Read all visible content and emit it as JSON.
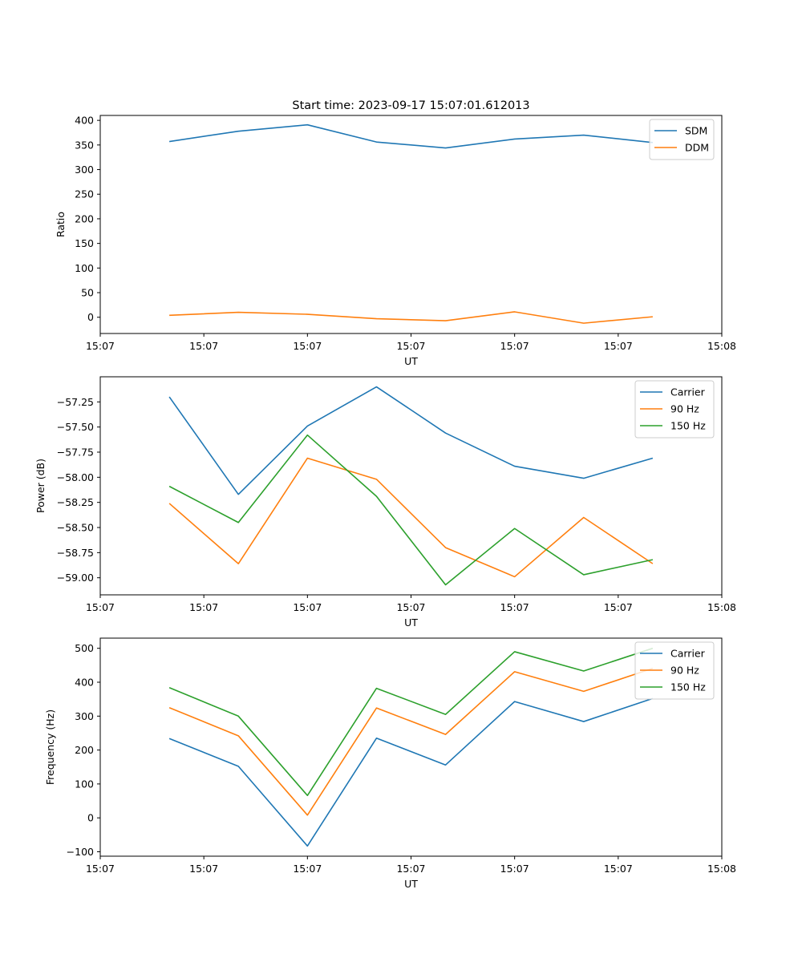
{
  "figure_title": "Start time: 2023-09-17 15:07:01.612013",
  "chart_data": [
    {
      "type": "line",
      "title": "Start time: 2023-09-17 15:07:01.612013",
      "xlabel": "UT",
      "ylabel": "Ratio",
      "x_index": [
        1,
        2,
        3,
        4,
        5,
        6,
        7,
        8
      ],
      "xlim": [
        0,
        9
      ],
      "x_ticks": [
        0,
        1.5,
        3,
        4.5,
        6,
        7.5,
        9
      ],
      "x_tick_labels": [
        "15:07",
        "15:07",
        "15:07",
        "15:07",
        "15:07",
        "15:07",
        "15:08"
      ],
      "ylim": [
        -33,
        410
      ],
      "y_ticks": [
        0,
        50,
        100,
        150,
        200,
        250,
        300,
        350,
        400
      ],
      "y_tick_labels": [
        "0",
        "50",
        "100",
        "150",
        "200",
        "250",
        "300",
        "350",
        "400"
      ],
      "legend": "top-right",
      "series": [
        {
          "name": "SDM",
          "color": "#1f77b4",
          "values": [
            357,
            378,
            391,
            356,
            344,
            362,
            370,
            355
          ]
        },
        {
          "name": "DDM",
          "color": "#ff7f0e",
          "values": [
            4,
            10,
            6,
            -3,
            -7,
            11,
            -12,
            1
          ]
        }
      ]
    },
    {
      "type": "line",
      "title": "",
      "xlabel": "UT",
      "ylabel": "Power (dB)",
      "x_index": [
        1,
        2,
        3,
        4,
        5,
        6,
        7,
        8
      ],
      "xlim": [
        0,
        9
      ],
      "x_ticks": [
        0,
        1.5,
        3,
        4.5,
        6,
        7.5,
        9
      ],
      "x_tick_labels": [
        "15:07",
        "15:07",
        "15:07",
        "15:07",
        "15:07",
        "15:07",
        "15:08"
      ],
      "ylim": [
        -59.17,
        -57.0
      ],
      "y_ticks": [
        -59.0,
        -58.75,
        -58.5,
        -58.25,
        -58.0,
        -57.75,
        -57.5,
        -57.25
      ],
      "y_tick_labels": [
        "−59.00",
        "−58.75",
        "−58.50",
        "−58.25",
        "−58.00",
        "−57.75",
        "−57.50",
        "−57.25"
      ],
      "legend": "top-right",
      "series": [
        {
          "name": "Carrier",
          "color": "#1f77b4",
          "values": [
            -57.2,
            -58.17,
            -57.49,
            -57.1,
            -57.56,
            -57.89,
            -58.01,
            -57.81
          ]
        },
        {
          "name": "90 Hz",
          "color": "#ff7f0e",
          "values": [
            -58.26,
            -58.86,
            -57.81,
            -58.02,
            -58.7,
            -58.99,
            -58.4,
            -58.86
          ]
        },
        {
          "name": "150 Hz",
          "color": "#2ca02c",
          "values": [
            -58.09,
            -58.45,
            -57.58,
            -58.19,
            -59.07,
            -58.51,
            -58.97,
            -58.82
          ]
        }
      ]
    },
    {
      "type": "line",
      "title": "",
      "xlabel": "UT",
      "ylabel": "Frequency (Hz)",
      "x_index": [
        1,
        2,
        3,
        4,
        5,
        6,
        7,
        8
      ],
      "xlim": [
        0,
        9
      ],
      "x_ticks": [
        0,
        1.5,
        3,
        4.5,
        6,
        7.5,
        9
      ],
      "x_tick_labels": [
        "15:07",
        "15:07",
        "15:07",
        "15:07",
        "15:07",
        "15:07",
        "15:08"
      ],
      "ylim": [
        -113,
        530
      ],
      "y_ticks": [
        -100,
        0,
        100,
        200,
        300,
        400,
        500
      ],
      "y_tick_labels": [
        "−100",
        "0",
        "100",
        "200",
        "300",
        "400",
        "500"
      ],
      "legend": "top-right",
      "series": [
        {
          "name": "Carrier",
          "color": "#1f77b4",
          "values": [
            234,
            152,
            -83,
            235,
            156,
            343,
            284,
            352
          ]
        },
        {
          "name": "90 Hz",
          "color": "#ff7f0e",
          "values": [
            325,
            242,
            8,
            324,
            246,
            431,
            373,
            441
          ]
        },
        {
          "name": "150 Hz",
          "color": "#2ca02c",
          "values": [
            384,
            300,
            66,
            382,
            305,
            490,
            433,
            500
          ]
        }
      ]
    }
  ]
}
